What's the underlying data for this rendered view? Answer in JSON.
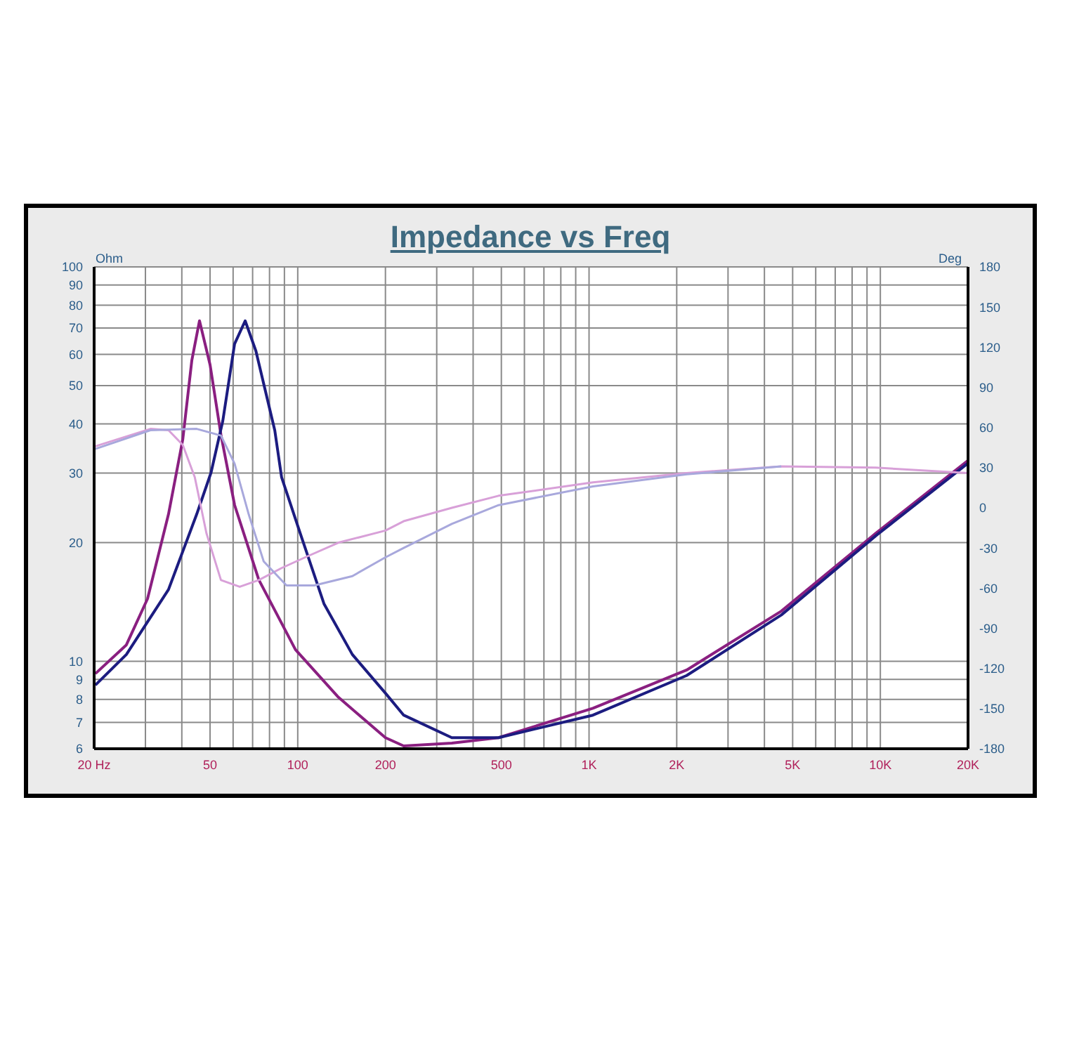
{
  "chart_data": {
    "type": "line",
    "title": "Impedance vs Freq",
    "ylabel": "Ohm",
    "y2label": "Deg",
    "xlim": [
      20,
      20000
    ],
    "xticks": [
      {
        "value": 20,
        "label": "20  Hz"
      },
      {
        "value": 30,
        "label": null
      },
      {
        "value": 40,
        "label": null
      },
      50,
      {
        "value": 60,
        "label": null
      },
      {
        "value": 70,
        "label": null
      },
      {
        "value": 80,
        "label": null
      },
      {
        "value": 90,
        "label": null
      },
      100,
      200,
      {
        "value": 300,
        "label": null
      },
      {
        "value": 400,
        "label": null
      },
      500,
      {
        "value": 600,
        "label": null
      },
      {
        "value": 700,
        "label": null
      },
      {
        "value": 800,
        "label": null
      },
      {
        "value": 900,
        "label": null
      },
      {
        "value": 1000,
        "label": "1K"
      },
      {
        "value": 2000,
        "label": "2K"
      },
      {
        "value": 3000,
        "label": null
      },
      {
        "value": 4000,
        "label": null
      },
      {
        "value": 5000,
        "label": "5K"
      },
      {
        "value": 6000,
        "label": null
      },
      {
        "value": 7000,
        "label": null
      },
      {
        "value": 8000,
        "label": null
      },
      {
        "value": 9000,
        "label": null
      },
      {
        "value": 10000,
        "label": "10K"
      },
      {
        "value": 20000,
        "label": "20K"
      }
    ],
    "ylim": [
      6,
      100
    ],
    "yticks": [
      6,
      7,
      8,
      9,
      10,
      20,
      30,
      40,
      50,
      60,
      70,
      80,
      90,
      100
    ],
    "y2lim": [
      -180,
      180
    ],
    "y2ticks": [
      -180,
      -150,
      -120,
      -90,
      -60,
      -30,
      0,
      30,
      60,
      90,
      120,
      150,
      180
    ],
    "log": "xy",
    "grid": true,
    "marker": "none",
    "line_style": "solid",
    "series": [
      {
        "color": "#8a1f80",
        "x": [
          20.2,
          25.8,
          30.5,
          36,
          40.3,
          43.3,
          46,
          50,
          54.5,
          60.7,
          73.5,
          98.2,
          138,
          200,
          231,
          338,
          489,
          1031,
          2163,
          4570,
          9640,
          20000
        ],
        "values": [
          9.3,
          11,
          14.4,
          23.6,
          36.5,
          58,
          73,
          56.5,
          37.5,
          24.9,
          16.1,
          10.7,
          8.1,
          6.4,
          6.1,
          6.2,
          6.4,
          7.6,
          9.5,
          13.4,
          21.1,
          32.3
        ]
      },
      {
        "color": "#1c1c80",
        "x": [
          20.2,
          25.8,
          36,
          45,
          50.4,
          55.3,
          60.7,
          66,
          71.8,
          83.4,
          88,
          102,
          123,
          154,
          200,
          231,
          338,
          489,
          1031,
          2163,
          4570,
          9640,
          20000
        ],
        "values": [
          8.7,
          10.4,
          15.2,
          23.6,
          30.1,
          40.7,
          63.8,
          73,
          61.3,
          38.5,
          29.3,
          21.1,
          14,
          10.4,
          8.3,
          7.3,
          6.4,
          6.4,
          7.3,
          9.2,
          13.1,
          20.8,
          31.8
        ]
      },
      {
        "color": "#d8a0d8",
        "axis": "y2",
        "x": [
          20.2,
          31.2,
          36,
          40.3,
          44.3,
          48.6,
          54.5,
          63.2,
          73.5,
          88,
          106,
          138,
          200,
          231,
          338,
          489,
          1031,
          2163,
          4570,
          9640,
          20000
        ],
        "values": [
          46,
          59,
          58,
          47,
          23,
          -19,
          -54,
          -59,
          -54,
          -45,
          -37,
          -26,
          -17,
          -10,
          0,
          9,
          19,
          26,
          31,
          30,
          26
        ]
      },
      {
        "color": "#a8a8dc",
        "axis": "y2",
        "x": [
          20.2,
          31.2,
          45,
          54.5,
          60.7,
          67.9,
          76.4,
          91.5,
          114,
          154,
          200,
          231,
          338,
          489,
          1031,
          2163,
          4570
        ],
        "values": [
          44,
          58,
          59,
          54,
          33,
          -5,
          -40,
          -58,
          -58,
          -51,
          -37,
          -30,
          -12,
          2,
          16,
          25,
          31
        ]
      }
    ]
  }
}
